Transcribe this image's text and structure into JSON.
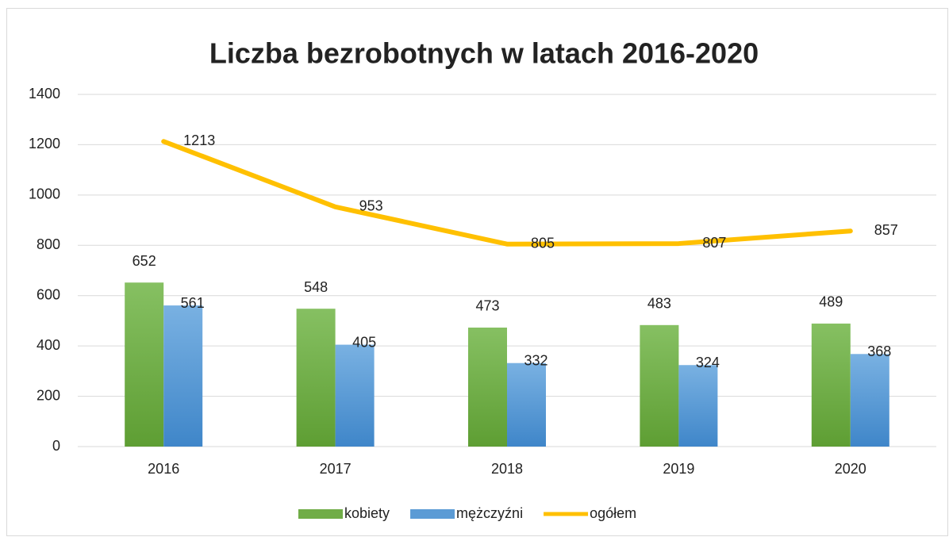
{
  "chart_data": {
    "type": "bar",
    "title": "Liczba bezrobotnych w latach 2016-2020",
    "categories": [
      "2016",
      "2017",
      "2018",
      "2019",
      "2020"
    ],
    "series": [
      {
        "name": "kobiety",
        "type": "bar",
        "color": "#70ad47",
        "values": [
          652,
          548,
          473,
          483,
          489
        ]
      },
      {
        "name": "mężczyźni",
        "type": "bar",
        "color": "#5b9bd5",
        "values": [
          561,
          405,
          332,
          324,
          368
        ]
      },
      {
        "name": "ogółem",
        "type": "line",
        "color": "#ffc000",
        "values": [
          1213,
          953,
          805,
          807,
          857
        ]
      }
    ],
    "ylim": [
      0,
      1400
    ],
    "yticks": [
      0,
      200,
      400,
      600,
      800,
      1000,
      1200,
      1400
    ],
    "grid": true,
    "legend": "bottom"
  }
}
